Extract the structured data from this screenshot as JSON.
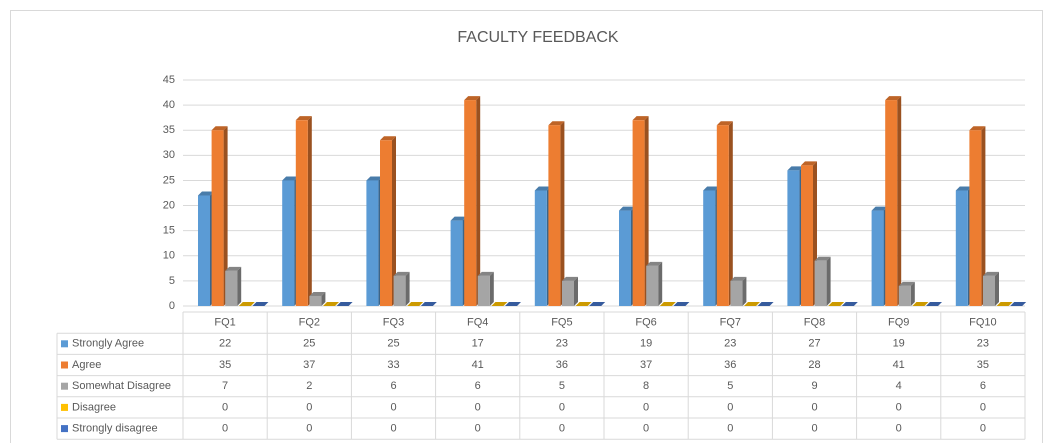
{
  "chart_data": {
    "type": "bar",
    "title": "FACULTY FEEDBACK",
    "categories": [
      "FQ1",
      "FQ2",
      "FQ3",
      "FQ4",
      "FQ5",
      "FQ6",
      "FQ7",
      "FQ8",
      "FQ9",
      "FQ10"
    ],
    "series": [
      {
        "name": "Strongly Agree",
        "color": "#5b9bd5",
        "values": [
          22,
          25,
          25,
          17,
          23,
          19,
          23,
          27,
          19,
          23
        ]
      },
      {
        "name": "Agree",
        "color": "#ed7d31",
        "values": [
          35,
          37,
          33,
          41,
          36,
          37,
          36,
          28,
          41,
          35
        ]
      },
      {
        "name": "Somewhat Disagree",
        "color": "#a5a5a5",
        "values": [
          7,
          2,
          6,
          6,
          5,
          8,
          5,
          9,
          4,
          6
        ]
      },
      {
        "name": "Disagree",
        "color": "#ffc000",
        "values": [
          0,
          0,
          0,
          0,
          0,
          0,
          0,
          0,
          0,
          0
        ]
      },
      {
        "name": "Strongly disagree",
        "color": "#4472c4",
        "values": [
          0,
          0,
          0,
          0,
          0,
          0,
          0,
          0,
          0,
          0
        ]
      }
    ],
    "ylim": [
      0,
      45
    ],
    "yticks": [
      0,
      5,
      10,
      15,
      20,
      25,
      30,
      35,
      40,
      45
    ],
    "grid": true,
    "data_table": true
  }
}
